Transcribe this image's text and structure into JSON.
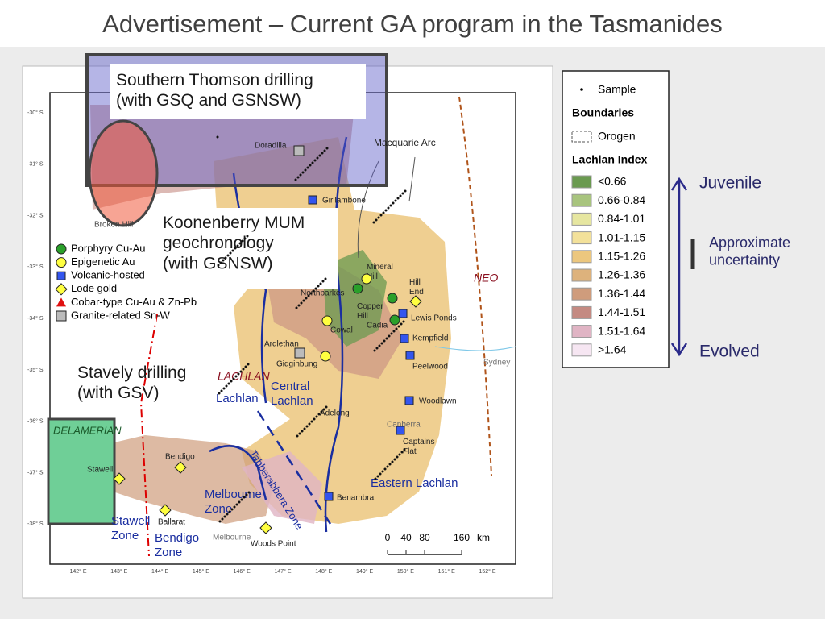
{
  "header": {
    "title": "Advertisement – Current GA program in the Tasmanides"
  },
  "callouts": [
    "Southern Thomson drilling (with GSQ and GSNSW)",
    "Koonenberry MUM geochronology (with GSNSW)",
    "Stavely drilling (with GSV)"
  ],
  "legend": {
    "sample": "Sample",
    "boundaries": "Boundaries",
    "orogen": "Orogen",
    "index_title": "Lachlan Index",
    "classes": [
      {
        "label": "<0.66",
        "color": "#6a9a50"
      },
      {
        "label": "0.66-0.84",
        "color": "#a8c47e"
      },
      {
        "label": "0.84-1.01",
        "color": "#e6e6a0"
      },
      {
        "label": "1.01-1.15",
        "color": "#f3e19a"
      },
      {
        "label": "1.15-1.26",
        "color": "#ecc77e"
      },
      {
        "label": "1.26-1.36",
        "color": "#ddb27c"
      },
      {
        "label": "1.36-1.44",
        "color": "#cf9c7c"
      },
      {
        "label": "1.44-1.51",
        "color": "#c48a82"
      },
      {
        "label": "1.51-1.64",
        "color": "#e0b4c4"
      },
      {
        "label": ">1.64",
        "color": "#f6e6f2"
      }
    ]
  },
  "scale_side": {
    "top": "Juvenile",
    "middle": "Approximate uncertainty",
    "bottom": "Evolved"
  },
  "deposit_legend": [
    "Porphyry Cu-Au",
    "Epigenetic Au",
    "Volcanic-hosted",
    "Lode gold",
    "Cobar-type Cu-Au & Zn-Pb",
    "Granite-related Sn-W"
  ],
  "places": [
    "Doradilla",
    "Girilambone",
    "Broken Hill",
    "Macquarie Arc",
    "Mineral Hill",
    "Hill End",
    "Northparkes",
    "Copper Hill",
    "Cadia",
    "Lewis Ponds",
    "Kempfield",
    "Cowal",
    "Ardlethan",
    "Gidginbung",
    "Peelwood",
    "Sydney",
    "NEO",
    "LACHLAN",
    "Lachlan",
    "Central Lachlan",
    "Adelong",
    "Woodlawn",
    "Canberra",
    "Captains Flat",
    "DELAMERIAN",
    "Stawell",
    "Bendigo",
    "Ballarat",
    "Melbourne Zone",
    "Tabberabbera Zone",
    "Eastern Lachlan",
    "Benambra",
    "Stawell Zone",
    "Bendigo Zone",
    "Melbourne",
    "Woods Point"
  ],
  "latitudes": [
    "-30° S",
    "-31° S",
    "-32° S",
    "-33° S",
    "-34° S",
    "-35° S",
    "-36° S",
    "-37° S",
    "-38° S"
  ],
  "longitudes": [
    "142° E",
    "143° E",
    "144° E",
    "145° E",
    "146° E",
    "147° E",
    "148° E",
    "149° E",
    "150° E",
    "151° E",
    "152° E"
  ],
  "scalebar": [
    "0",
    "40",
    "80",
    "160",
    "km"
  ]
}
